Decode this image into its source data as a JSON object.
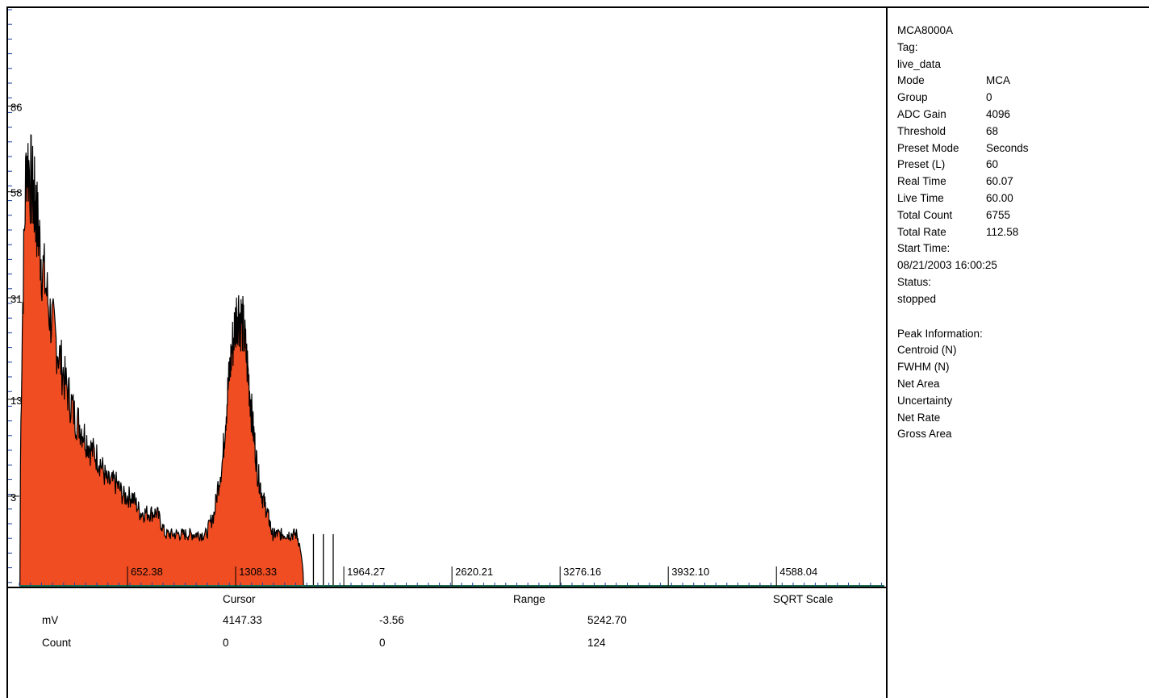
{
  "colors": {
    "fill": "#f04d22",
    "line": "#000000",
    "axis_green": "#1f6b4f"
  },
  "chart_data": {
    "type": "area",
    "xlabel": "",
    "ylabel": "",
    "x_tick_labels": [
      "652.38",
      "1308.33",
      "1964.27",
      "2620.21",
      "3276.16",
      "3932.10",
      "4588.04"
    ],
    "x_tick_values": [
      652.38,
      1308.33,
      1964.27,
      2620.21,
      3276.16,
      3932.1,
      4588.04
    ],
    "xlim": [
      -3.56,
      5242.7
    ],
    "y_tick_labels": [
      "86",
      "58",
      "31",
      "13",
      "3"
    ],
    "y_tick_values": [
      86,
      58,
      31,
      13,
      3
    ],
    "ylim": [
      0,
      124
    ],
    "y_scale": "sqrt",
    "series": [
      {
        "x": [
          0,
          40,
          80,
          100,
          130,
          180,
          230,
          280,
          330,
          380,
          430,
          480,
          530,
          580,
          630,
          680,
          730,
          780,
          830,
          880,
          930,
          980,
          1030,
          1080,
          1130,
          1180,
          1230,
          1260,
          1290,
          1320,
          1350,
          1380,
          1410,
          1440,
          1470,
          1500,
          1530,
          1560,
          1600,
          1640,
          1680,
          1720,
          1760,
          1800,
          1840,
          1880,
          1920,
          1960
        ],
        "y": [
          0,
          70,
          58,
          52,
          40,
          28,
          21,
          15,
          11,
          9,
          7,
          6,
          4,
          4,
          3,
          3,
          2,
          2,
          2,
          1,
          1,
          1,
          1,
          1,
          1,
          2,
          6,
          14,
          22,
          29,
          26,
          18,
          10,
          5,
          3,
          2,
          1,
          1,
          1,
          1,
          1,
          0,
          0,
          0,
          0,
          0,
          0,
          0
        ]
      }
    ]
  },
  "info": {
    "device": "MCA8000A",
    "tag_label": "Tag:",
    "tag_value": "live_data",
    "rows": [
      {
        "k": "Mode",
        "v": "MCA"
      },
      {
        "k": "Group",
        "v": "0"
      },
      {
        "k": "ADC Gain",
        "v": "4096"
      },
      {
        "k": "Threshold",
        "v": "68"
      },
      {
        "k": "Preset Mode",
        "v": "Seconds"
      },
      {
        "k": "Preset (L)",
        "v": "60"
      },
      {
        "k": "Real Time",
        "v": "60.07"
      },
      {
        "k": "Live Time",
        "v": "60.00"
      },
      {
        "k": "Total Count",
        "v": "6755"
      },
      {
        "k": "Total Rate",
        "v": "112.58"
      }
    ],
    "start_time_label": "Start Time:",
    "start_time_value": "08/21/2003 16:00:25",
    "status_label": "Status:",
    "status_value": "stopped",
    "peak_title": "Peak Information:",
    "peak_rows": [
      "Centroid (N)",
      "FWHM (N)",
      "Net Area",
      "Uncertainty",
      "Net Rate",
      "Gross Area"
    ]
  },
  "cursor_panel": {
    "col_cursor": "Cursor",
    "col_range": "Range",
    "col_scale": "SQRT Scale",
    "mv_label": "mV",
    "mv_cursor": "4147.33",
    "mv_range_min": "-3.56",
    "mv_range_max": "5242.70",
    "count_label": "Count",
    "count_cursor": "0",
    "count_range_min": "0",
    "count_range_max": "124"
  }
}
